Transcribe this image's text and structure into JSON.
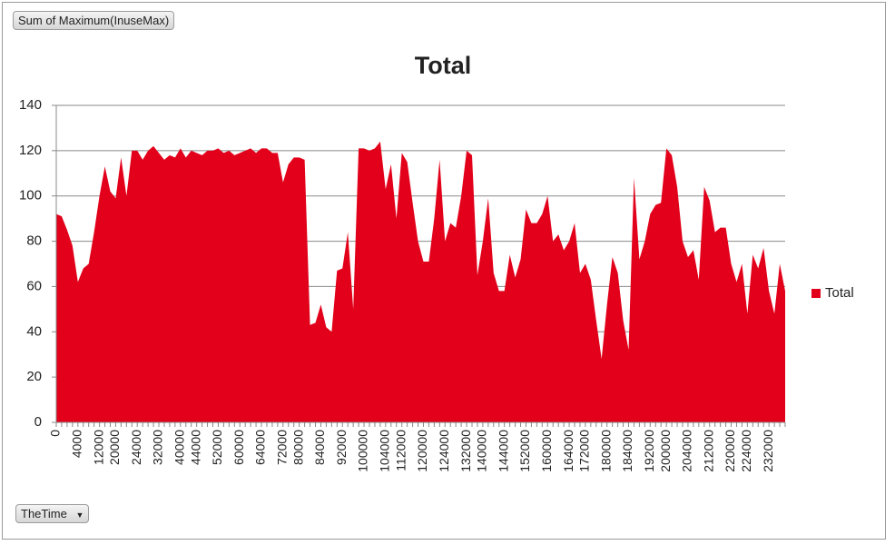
{
  "chart_data": {
    "type": "area",
    "title": "Total",
    "field_button": "Sum of Maximum(InuseMax)",
    "axis_button": "TheTime",
    "categories": [
      "0",
      null,
      null,
      null,
      "4000",
      null,
      null,
      null,
      "12000",
      null,
      null,
      "20000",
      null,
      null,
      null,
      "24000",
      null,
      null,
      null,
      "32000",
      null,
      null,
      null,
      "40000",
      null,
      null,
      "44000",
      null,
      null,
      null,
      "52000",
      null,
      null,
      null,
      "60000",
      null,
      null,
      null,
      "64000",
      null,
      null,
      null,
      "72000",
      null,
      null,
      "80000",
      null,
      null,
      null,
      "84000",
      null,
      null,
      null,
      "92000",
      null,
      null,
      null,
      "100000",
      null,
      null,
      null,
      "104000",
      null,
      null,
      "112000",
      null,
      null,
      null,
      "120000",
      null,
      null,
      null,
      "124000",
      null,
      null,
      null,
      "132000",
      null,
      null,
      "140000",
      null,
      null,
      null,
      "144000",
      null,
      null,
      null,
      "152000",
      null,
      null,
      null,
      "160000",
      null,
      null,
      null,
      "164000",
      null,
      null,
      "172000",
      null,
      null,
      null,
      "180000",
      null,
      null,
      null,
      "184000",
      null,
      null,
      null,
      "192000",
      null,
      null,
      "200000",
      null,
      null,
      null,
      "204000",
      null,
      null,
      null,
      "212000",
      null,
      null,
      null,
      "220000",
      null,
      null,
      "224000",
      null,
      null,
      null,
      "232000",
      null,
      null,
      null
    ],
    "series": [
      {
        "name": "Total",
        "color": "#e2001a",
        "values": [
          92,
          91,
          85,
          78,
          62,
          68,
          70,
          84,
          100,
          113,
          102,
          99,
          117,
          100,
          120,
          120,
          116,
          120,
          122,
          119,
          116,
          118,
          117,
          121,
          117,
          120,
          119,
          118,
          120,
          120,
          121,
          119,
          120,
          118,
          119,
          120,
          121,
          119,
          121,
          121,
          119,
          119,
          106,
          114,
          117,
          117,
          116,
          43,
          44,
          52,
          42,
          40,
          67,
          68,
          84,
          50,
          121,
          121,
          120,
          121,
          124,
          103,
          114,
          90,
          119,
          115,
          97,
          80,
          71,
          71,
          90,
          116,
          80,
          88,
          86,
          100,
          120,
          118,
          65,
          80,
          99,
          66,
          58,
          58,
          74,
          64,
          72,
          94,
          88,
          88,
          92,
          100,
          80,
          83,
          76,
          80,
          88,
          66,
          70,
          63,
          45,
          28,
          52,
          73,
          66,
          45,
          32,
          108,
          72,
          80,
          92,
          96,
          97,
          121,
          118,
          104,
          80,
          73,
          76,
          63,
          104,
          98,
          84,
          86,
          86,
          70,
          62,
          70,
          48,
          74,
          68,
          77,
          58,
          48,
          70,
          58
        ]
      }
    ],
    "ylim": [
      0,
      140
    ],
    "yticks": [
      0,
      20,
      40,
      60,
      80,
      100,
      120,
      140
    ],
    "grid": true,
    "legend": "right"
  }
}
